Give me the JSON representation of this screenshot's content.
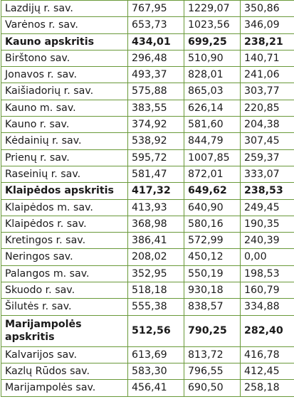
{
  "table": {
    "rows": [
      {
        "name": "Lazdijų r. sav.",
        "v1": "767,95",
        "v2": "1229,07",
        "v3": "350,86",
        "bold": false
      },
      {
        "name": "Varėnos r. sav.",
        "v1": "653,73",
        "v2": "1023,56",
        "v3": "346,09",
        "bold": false
      },
      {
        "name": "Kauno apskritis",
        "v1": "434,01",
        "v2": "699,25",
        "v3": "238,21",
        "bold": true
      },
      {
        "name": "Birštono sav.",
        "v1": "296,48",
        "v2": "510,90",
        "v3": "140,71",
        "bold": false
      },
      {
        "name": "Jonavos r. sav.",
        "v1": "493,37",
        "v2": "828,01",
        "v3": "241,06",
        "bold": false
      },
      {
        "name": "Kaišiadorių r. sav.",
        "v1": "575,88",
        "v2": "865,03",
        "v3": "303,77",
        "bold": false
      },
      {
        "name": "Kauno m. sav.",
        "v1": "383,55",
        "v2": "626,14",
        "v3": "220,85",
        "bold": false
      },
      {
        "name": "Kauno r. sav.",
        "v1": "374,92",
        "v2": "581,60",
        "v3": "204,38",
        "bold": false
      },
      {
        "name": "Kėdainių r. sav.",
        "v1": "538,92",
        "v2": "844,79",
        "v3": "307,45",
        "bold": false
      },
      {
        "name": "Prienų r. sav.",
        "v1": "595,72",
        "v2": "1007,85",
        "v3": "259,37",
        "bold": false
      },
      {
        "name": "Raseinių r. sav.",
        "v1": "581,47",
        "v2": "872,01",
        "v3": "333,07",
        "bold": false
      },
      {
        "name": "Klaipėdos apskritis",
        "v1": "417,32",
        "v2": "649,62",
        "v3": "238,53",
        "bold": true
      },
      {
        "name": "Klaipėdos m. sav.",
        "v1": "413,93",
        "v2": "640,90",
        "v3": "249,45",
        "bold": false
      },
      {
        "name": "Klaipėdos r. sav.",
        "v1": "368,98",
        "v2": "580,16",
        "v3": "190,35",
        "bold": false
      },
      {
        "name": "Kretingos r. sav.",
        "v1": "386,41",
        "v2": "572,99",
        "v3": "240,39",
        "bold": false
      },
      {
        "name": "Neringos sav.",
        "v1": "208,02",
        "v2": "450,12",
        "v3": "0,00",
        "bold": false
      },
      {
        "name": "Palangos m. sav.",
        "v1": "352,95",
        "v2": "550,19",
        "v3": "198,53",
        "bold": false
      },
      {
        "name": "Skuodo r. sav.",
        "v1": "518,18",
        "v2": "930,18",
        "v3": "160,79",
        "bold": false
      },
      {
        "name": "Šilutės r. sav.",
        "v1": "555,38",
        "v2": "838,57",
        "v3": "334,88",
        "bold": false
      },
      {
        "name": "Marijampolės apskritis",
        "v1": "512,56",
        "v2": "790,25",
        "v3": "282,40",
        "bold": true
      },
      {
        "name": "Kalvarijos sav.",
        "v1": "613,69",
        "v2": "813,72",
        "v3": "416,78",
        "bold": false
      },
      {
        "name": "Kazlų Rūdos sav.",
        "v1": "583,30",
        "v2": "796,55",
        "v3": "412,45",
        "bold": false
      },
      {
        "name": "Marijampolės sav.",
        "v1": "456,41",
        "v2": "690,50",
        "v3": "258,18",
        "bold": false
      }
    ]
  },
  "colors": {
    "border": "#6a9a3a",
    "text": "#1a1a1a"
  }
}
